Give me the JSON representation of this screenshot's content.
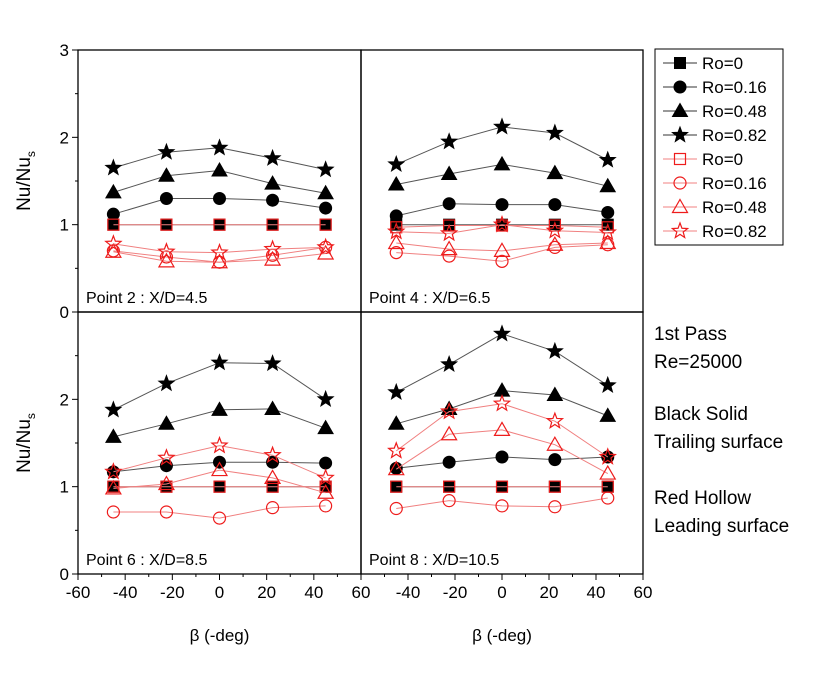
{
  "chart_data": [
    {
      "type": "line",
      "annotation": "Point 2 : X/D=4.5",
      "ylabel": "Nu/Nu",
      "ylabel_sub": "s",
      "xlabel": "",
      "xlim": [
        -60,
        60
      ],
      "ylim": [
        0,
        3
      ],
      "x": [
        -45,
        -22.5,
        0,
        22.5,
        45
      ],
      "series": [
        {
          "name": "Ro=0",
          "surface": "trailing",
          "marker": "square",
          "filled": true,
          "color": "#000000",
          "values": [
            1.0,
            1.0,
            1.0,
            1.0,
            1.0
          ]
        },
        {
          "name": "Ro=0.16",
          "surface": "trailing",
          "marker": "circle",
          "filled": true,
          "color": "#000000",
          "values": [
            1.12,
            1.3,
            1.3,
            1.28,
            1.19
          ]
        },
        {
          "name": "Ro=0.48",
          "surface": "trailing",
          "marker": "triangle",
          "filled": true,
          "color": "#000000",
          "values": [
            1.37,
            1.56,
            1.62,
            1.47,
            1.36
          ]
        },
        {
          "name": "Ro=0.82",
          "surface": "trailing",
          "marker": "star",
          "filled": true,
          "color": "#000000",
          "values": [
            1.65,
            1.83,
            1.88,
            1.76,
            1.63
          ]
        },
        {
          "name": "Ro=0",
          "surface": "leading",
          "marker": "square",
          "filled": false,
          "color": "#ee1c1c",
          "values": [
            1.0,
            1.0,
            1.0,
            1.0,
            1.0
          ]
        },
        {
          "name": "Ro=0.16",
          "surface": "leading",
          "marker": "circle",
          "filled": false,
          "color": "#ee1c1c",
          "values": [
            0.7,
            0.63,
            0.57,
            0.65,
            0.74
          ]
        },
        {
          "name": "Ro=0.48",
          "surface": "leading",
          "marker": "triangle",
          "filled": false,
          "color": "#ee1c1c",
          "values": [
            0.69,
            0.58,
            0.57,
            0.6,
            0.67
          ]
        },
        {
          "name": "Ro=0.82",
          "surface": "leading",
          "marker": "star",
          "filled": false,
          "color": "#ee1c1c",
          "values": [
            0.78,
            0.69,
            0.68,
            0.72,
            0.74
          ]
        }
      ]
    },
    {
      "type": "line",
      "annotation": "Point 4 : X/D=6.5",
      "ylabel": "",
      "ylabel_sub": "",
      "xlabel": "",
      "xlim": [
        -60,
        60
      ],
      "ylim": [
        0,
        3
      ],
      "x": [
        -45,
        -22.5,
        0,
        22.5,
        45
      ],
      "series": [
        {
          "name": "Ro=0",
          "surface": "trailing",
          "marker": "square",
          "filled": true,
          "color": "#000000",
          "values": [
            1.0,
            1.0,
            1.0,
            1.0,
            1.0
          ]
        },
        {
          "name": "Ro=0.16",
          "surface": "trailing",
          "marker": "circle",
          "filled": true,
          "color": "#000000",
          "values": [
            1.1,
            1.24,
            1.23,
            1.23,
            1.14
          ]
        },
        {
          "name": "Ro=0.48",
          "surface": "trailing",
          "marker": "triangle",
          "filled": true,
          "color": "#000000",
          "values": [
            1.46,
            1.58,
            1.69,
            1.59,
            1.44
          ]
        },
        {
          "name": "Ro=0.82",
          "surface": "trailing",
          "marker": "star",
          "filled": true,
          "color": "#000000",
          "values": [
            1.69,
            1.95,
            2.12,
            2.05,
            1.74
          ]
        },
        {
          "name": "Ro=0",
          "surface": "leading",
          "marker": "square",
          "filled": false,
          "color": "#ee1c1c",
          "values": [
            0.97,
            0.99,
            0.99,
            0.99,
            0.97
          ]
        },
        {
          "name": "Ro=0.16",
          "surface": "leading",
          "marker": "circle",
          "filled": false,
          "color": "#ee1c1c",
          "values": [
            0.68,
            0.64,
            0.58,
            0.74,
            0.77
          ]
        },
        {
          "name": "Ro=0.48",
          "surface": "leading",
          "marker": "triangle",
          "filled": false,
          "color": "#ee1c1c",
          "values": [
            0.79,
            0.72,
            0.7,
            0.77,
            0.79
          ]
        },
        {
          "name": "Ro=0.82",
          "surface": "leading",
          "marker": "star",
          "filled": false,
          "color": "#ee1c1c",
          "values": [
            0.92,
            0.9,
            1.0,
            0.93,
            0.91
          ]
        }
      ]
    },
    {
      "type": "line",
      "annotation": "Point 6 : X/D=8.5",
      "ylabel": "Nu/Nu",
      "ylabel_sub": "s",
      "xlabel": "β (-deg)",
      "xlim": [
        -60,
        60
      ],
      "ylim": [
        0,
        3
      ],
      "x": [
        -45,
        -22.5,
        0,
        22.5,
        45
      ],
      "series": [
        {
          "name": "Ro=0",
          "surface": "trailing",
          "marker": "square",
          "filled": true,
          "color": "#000000",
          "values": [
            1.0,
            1.0,
            1.0,
            1.0,
            1.0
          ]
        },
        {
          "name": "Ro=0.16",
          "surface": "trailing",
          "marker": "circle",
          "filled": true,
          "color": "#000000",
          "values": [
            1.17,
            1.24,
            1.28,
            1.28,
            1.27
          ]
        },
        {
          "name": "Ro=0.48",
          "surface": "trailing",
          "marker": "triangle",
          "filled": true,
          "color": "#000000",
          "values": [
            1.57,
            1.72,
            1.88,
            1.89,
            1.67
          ]
        },
        {
          "name": "Ro=0.82",
          "surface": "trailing",
          "marker": "star",
          "filled": true,
          "color": "#000000",
          "values": [
            1.88,
            2.18,
            2.42,
            2.41,
            2.0
          ]
        },
        {
          "name": "Ro=0",
          "surface": "leading",
          "marker": "square",
          "filled": false,
          "color": "#ee1c1c",
          "values": [
            1.0,
            1.0,
            1.0,
            1.0,
            1.0
          ]
        },
        {
          "name": "Ro=0.16",
          "surface": "leading",
          "marker": "circle",
          "filled": false,
          "color": "#ee1c1c",
          "values": [
            0.71,
            0.71,
            0.64,
            0.76,
            0.78
          ]
        },
        {
          "name": "Ro=0.48",
          "surface": "leading",
          "marker": "triangle",
          "filled": false,
          "color": "#ee1c1c",
          "values": [
            0.98,
            1.03,
            1.19,
            1.1,
            0.93
          ]
        },
        {
          "name": "Ro=0.82",
          "surface": "leading",
          "marker": "star",
          "filled": false,
          "color": "#ee1c1c",
          "values": [
            1.17,
            1.33,
            1.47,
            1.36,
            1.1
          ]
        }
      ]
    },
    {
      "type": "line",
      "annotation": "Point 8 : X/D=10.5",
      "ylabel": "",
      "ylabel_sub": "",
      "xlabel": "β (-deg)",
      "xlim": [
        -60,
        60
      ],
      "ylim": [
        0,
        3
      ],
      "x": [
        -45,
        -22.5,
        0,
        22.5,
        45
      ],
      "series": [
        {
          "name": "Ro=0",
          "surface": "trailing",
          "marker": "square",
          "filled": true,
          "color": "#000000",
          "values": [
            1.0,
            1.0,
            1.0,
            1.0,
            1.0
          ]
        },
        {
          "name": "Ro=0.16",
          "surface": "trailing",
          "marker": "circle",
          "filled": true,
          "color": "#000000",
          "values": [
            1.21,
            1.28,
            1.34,
            1.31,
            1.34
          ]
        },
        {
          "name": "Ro=0.48",
          "surface": "trailing",
          "marker": "triangle",
          "filled": true,
          "color": "#000000",
          "values": [
            1.72,
            1.89,
            2.1,
            2.05,
            1.81
          ]
        },
        {
          "name": "Ro=0.82",
          "surface": "trailing",
          "marker": "star",
          "filled": true,
          "color": "#000000",
          "values": [
            2.08,
            2.4,
            2.75,
            2.55,
            2.16
          ]
        },
        {
          "name": "Ro=0",
          "surface": "leading",
          "marker": "square",
          "filled": false,
          "color": "#ee1c1c",
          "values": [
            1.0,
            1.0,
            1.0,
            1.0,
            1.0
          ]
        },
        {
          "name": "Ro=0.16",
          "surface": "leading",
          "marker": "circle",
          "filled": false,
          "color": "#ee1c1c",
          "values": [
            0.75,
            0.84,
            0.78,
            0.77,
            0.87
          ]
        },
        {
          "name": "Ro=0.48",
          "surface": "leading",
          "marker": "triangle",
          "filled": false,
          "color": "#ee1c1c",
          "values": [
            1.2,
            1.6,
            1.65,
            1.48,
            1.15
          ]
        },
        {
          "name": "Ro=0.82",
          "surface": "leading",
          "marker": "star",
          "filled": false,
          "color": "#ee1c1c",
          "values": [
            1.41,
            1.86,
            1.95,
            1.75,
            1.34
          ]
        }
      ]
    }
  ],
  "axes": {
    "y_ticks": [
      0,
      1,
      2,
      3
    ],
    "y_ticks_lower_panels": [
      0,
      1,
      2
    ],
    "x_tick_labels": [
      "-60",
      "-40",
      "-20",
      "0",
      "20",
      "40",
      "60"
    ],
    "x_tick_labels_right_panel": [
      "-40",
      "-20",
      "0",
      "20",
      "40",
      "60"
    ]
  },
  "legend": {
    "placement": "right",
    "items": [
      {
        "label": "Ro=0",
        "marker": "square",
        "filled": true,
        "color": "#000000"
      },
      {
        "label": "Ro=0.16",
        "marker": "circle",
        "filled": true,
        "color": "#000000"
      },
      {
        "label": "Ro=0.48",
        "marker": "triangle",
        "filled": true,
        "color": "#000000"
      },
      {
        "label": "Ro=0.82",
        "marker": "star",
        "filled": true,
        "color": "#000000"
      },
      {
        "label": "Ro=0",
        "marker": "square",
        "filled": false,
        "color": "#ee1c1c"
      },
      {
        "label": "Ro=0.16",
        "marker": "circle",
        "filled": false,
        "color": "#ee1c1c"
      },
      {
        "label": "Ro=0.48",
        "marker": "triangle",
        "filled": false,
        "color": "#ee1c1c"
      },
      {
        "label": "Ro=0.82",
        "marker": "star",
        "filled": false,
        "color": "#ee1c1c"
      }
    ]
  },
  "notes": {
    "pass": "1st Pass",
    "reynolds": "Re=25000",
    "trailing_line1": "Black Solid",
    "trailing_line2": "Trailing surface",
    "leading_line1": "Red Hollow",
    "leading_line2": "Leading surface",
    "leading_color": "#ee1c1c"
  },
  "colors": {
    "trailing": "#000000",
    "leading": "#ee1c1c",
    "connector_trailing": "#555555",
    "connector_leading": "#f08080"
  }
}
